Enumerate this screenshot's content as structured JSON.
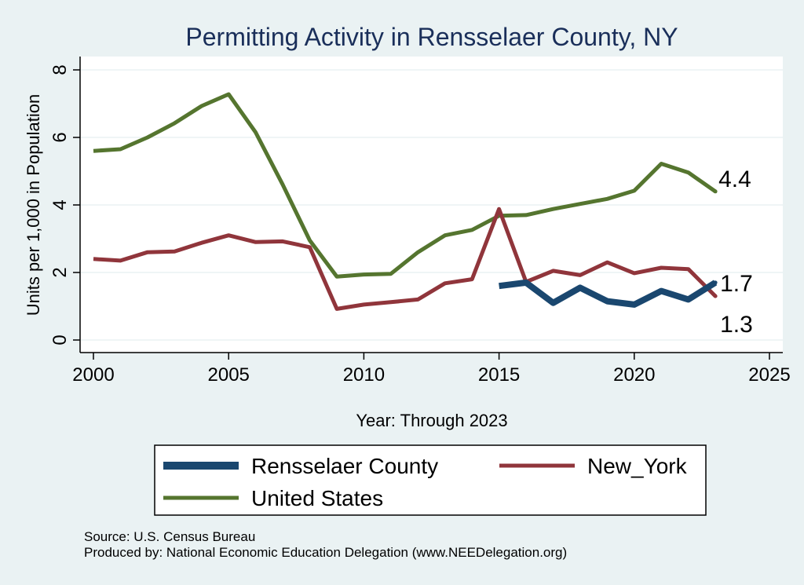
{
  "chart_data": {
    "type": "line",
    "title": "Permitting Activity in Rensselaer County, NY",
    "xlabel": "Year: Through 2023",
    "ylabel": "Units per 1,000 in Population",
    "xlim": [
      2000,
      2025
    ],
    "ylim": [
      0,
      8
    ],
    "xticks": [
      2000,
      2005,
      2010,
      2015,
      2020,
      2025
    ],
    "yticks": [
      0,
      2,
      4,
      6,
      8
    ],
    "grid": true,
    "legend": "bottom",
    "series": [
      {
        "name": "Rensselaer County",
        "color": "#1a476f",
        "x": [
          2015,
          2016,
          2017,
          2018,
          2019,
          2020,
          2021,
          2022,
          2023
        ],
        "values": [
          1.6,
          1.7,
          1.1,
          1.55,
          1.15,
          1.05,
          1.45,
          1.2,
          1.7
        ],
        "end_label": "1.7"
      },
      {
        "name": "New_York",
        "color": "#90353b",
        "x": [
          2000,
          2001,
          2002,
          2003,
          2004,
          2005,
          2006,
          2007,
          2008,
          2009,
          2010,
          2011,
          2012,
          2013,
          2014,
          2015,
          2016,
          2017,
          2018,
          2019,
          2020,
          2021,
          2022,
          2023
        ],
        "values": [
          2.4,
          2.35,
          2.6,
          2.62,
          2.88,
          3.1,
          2.9,
          2.92,
          2.75,
          0.92,
          1.05,
          1.12,
          1.2,
          1.68,
          1.8,
          3.88,
          1.72,
          2.05,
          1.92,
          2.3,
          1.98,
          2.14,
          2.1,
          1.3
        ],
        "end_label": "1.3"
      },
      {
        "name": "United States",
        "color": "#55752f",
        "x": [
          2000,
          2001,
          2002,
          2003,
          2004,
          2005,
          2006,
          2007,
          2008,
          2009,
          2010,
          2011,
          2012,
          2013,
          2014,
          2015,
          2016,
          2017,
          2018,
          2019,
          2020,
          2021,
          2022,
          2023
        ],
        "values": [
          5.6,
          5.65,
          6.0,
          6.42,
          6.93,
          7.28,
          6.15,
          4.6,
          2.95,
          1.88,
          1.94,
          1.96,
          2.6,
          3.1,
          3.26,
          3.68,
          3.7,
          3.88,
          4.03,
          4.18,
          4.42,
          5.22,
          4.96,
          4.4
        ],
        "end_label": "4.4"
      }
    ]
  },
  "notes": {
    "source": "Source: U.S. Census Bureau",
    "produced_by": "Produced by: National Economic Education Delegation (www.NEEDelegation.org)"
  }
}
